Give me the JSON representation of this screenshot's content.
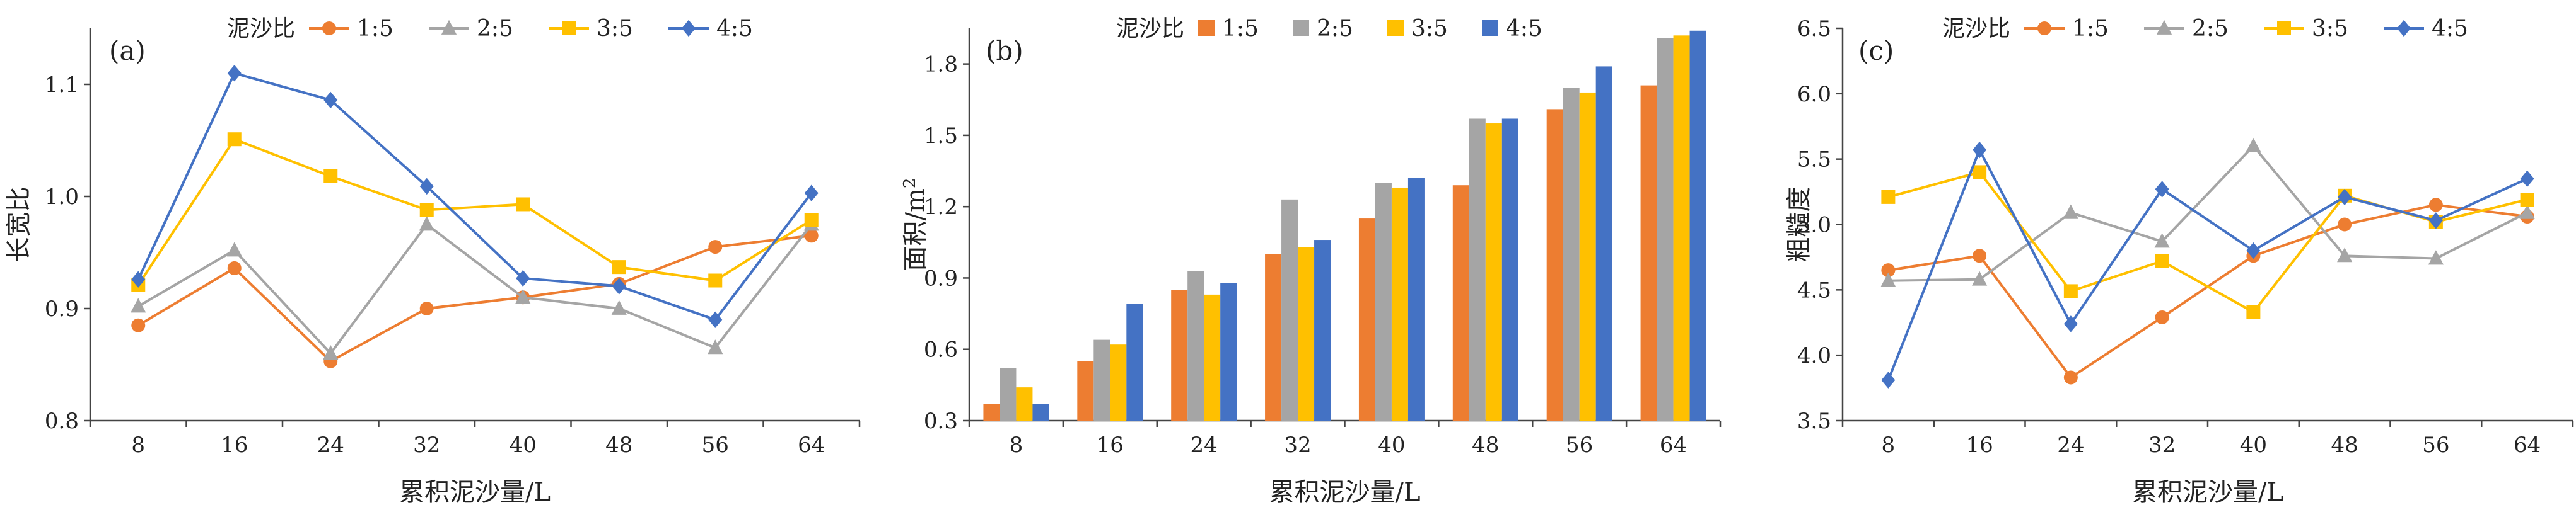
{
  "chart_data": [
    {
      "type": "line",
      "panel_label": "(a)",
      "legend_title": "泥沙比",
      "categories": [
        "8",
        "16",
        "24",
        "32",
        "40",
        "48",
        "56",
        "64"
      ],
      "xlabel": "累积泥沙量/L",
      "ylabel": "长宽比",
      "ylim": [
        0.8,
        1.15
      ],
      "yticks": [
        "0.8",
        "0.9",
        "1.0",
        "1.1"
      ],
      "series": [
        {
          "name": "1:5",
          "color": "#ED7D31",
          "marker": "circle",
          "values": [
            0.885,
            0.936,
            0.853,
            0.9,
            0.91,
            0.922,
            0.955,
            0.965
          ]
        },
        {
          "name": "2:5",
          "color": "#A5A5A5",
          "marker": "triangle",
          "values": [
            0.902,
            0.952,
            0.86,
            0.975,
            0.91,
            0.9,
            0.865,
            0.975
          ]
        },
        {
          "name": "3:5",
          "color": "#FFC000",
          "marker": "square",
          "values": [
            0.921,
            1.051,
            1.018,
            0.988,
            0.993,
            0.937,
            0.925,
            0.979
          ]
        },
        {
          "name": "4:5",
          "color": "#4472C4",
          "marker": "diamond",
          "values": [
            0.926,
            1.11,
            1.086,
            1.009,
            0.927,
            0.92,
            0.89,
            1.003
          ]
        }
      ]
    },
    {
      "type": "bar",
      "panel_label": "(b)",
      "legend_title": "泥沙比",
      "categories": [
        "8",
        "16",
        "24",
        "32",
        "40",
        "48",
        "56",
        "64"
      ],
      "xlabel": "累积泥沙量/L",
      "ylabel_main": "面积/m",
      "ylabel_sup": "2",
      "ylim": [
        0.3,
        1.95
      ],
      "yticks": [
        "0.3",
        "0.6",
        "0.9",
        "1.2",
        "1.5",
        "1.8"
      ],
      "series": [
        {
          "name": "1:5",
          "color": "#ED7D31",
          "values": [
            0.37,
            0.55,
            0.85,
            1.0,
            1.15,
            1.29,
            1.61,
            1.71
          ]
        },
        {
          "name": "2:5",
          "color": "#A5A5A5",
          "values": [
            0.52,
            0.64,
            0.93,
            1.23,
            1.3,
            1.57,
            1.7,
            1.91
          ]
        },
        {
          "name": "3:5",
          "color": "#FFC000",
          "values": [
            0.44,
            0.62,
            0.83,
            1.03,
            1.28,
            1.55,
            1.68,
            1.92
          ]
        },
        {
          "name": "4:5",
          "color": "#4472C4",
          "values": [
            0.37,
            0.79,
            0.88,
            1.06,
            1.32,
            1.57,
            1.79,
            1.94
          ]
        }
      ]
    },
    {
      "type": "line",
      "panel_label": "(c)",
      "legend_title": "泥沙比",
      "categories": [
        "8",
        "16",
        "24",
        "32",
        "40",
        "48",
        "56",
        "64"
      ],
      "xlabel": "累积泥沙量/L",
      "ylabel": "粗糙度",
      "ylim": [
        3.5,
        6.5
      ],
      "yticks": [
        "3.5",
        "4.0",
        "4.5",
        "5.0",
        "5.5",
        "6.0",
        "6.5"
      ],
      "series": [
        {
          "name": "1:5",
          "color": "#ED7D31",
          "marker": "circle",
          "values": [
            4.65,
            4.76,
            3.83,
            4.29,
            4.76,
            5.0,
            5.15,
            5.06
          ]
        },
        {
          "name": "2:5",
          "color": "#A5A5A5",
          "marker": "triangle",
          "values": [
            4.57,
            4.58,
            5.09,
            4.87,
            5.6,
            4.76,
            4.74,
            5.09
          ]
        },
        {
          "name": "3:5",
          "color": "#FFC000",
          "marker": "square",
          "values": [
            5.21,
            5.4,
            4.49,
            4.72,
            4.33,
            5.22,
            5.02,
            5.19
          ]
        },
        {
          "name": "4:5",
          "color": "#4472C4",
          "marker": "diamond",
          "values": [
            3.81,
            5.57,
            4.24,
            5.27,
            4.8,
            5.21,
            5.03,
            5.35
          ]
        }
      ]
    }
  ]
}
